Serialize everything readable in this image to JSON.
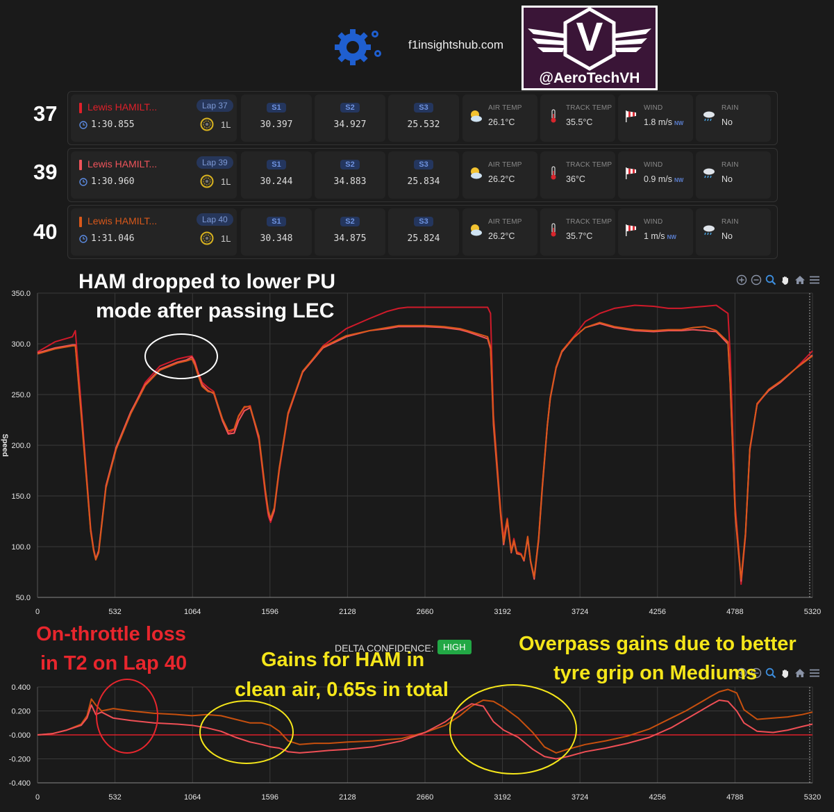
{
  "header": {
    "site": "f1insightshub.com",
    "brand_letter": "V",
    "brand_handle": "@AeroTechVH"
  },
  "laps": [
    {
      "lap_number": "37",
      "driver": "Lewis HAMILT...",
      "color": "#e0202a",
      "lap_badge": "Lap 37",
      "time": "1:30.855",
      "tyre_info": "1L",
      "sectors": [
        {
          "label": "S1",
          "time": "30.397"
        },
        {
          "label": "S2",
          "time": "34.927"
        },
        {
          "label": "S3",
          "time": "25.532"
        }
      ],
      "weather": {
        "air_label": "AIR TEMP",
        "air": "26.1°C",
        "track_label": "TRACK TEMP",
        "track": "35.5°C",
        "wind_label": "WIND",
        "wind": "1.8 m/s",
        "wind_dir": "NW",
        "rain_label": "RAIN",
        "rain": "No"
      }
    },
    {
      "lap_number": "39",
      "driver": "Lewis HAMILT...",
      "color": "#f0545b",
      "lap_badge": "Lap 39",
      "time": "1:30.960",
      "tyre_info": "1L",
      "sectors": [
        {
          "label": "S1",
          "time": "30.244"
        },
        {
          "label": "S2",
          "time": "34.883"
        },
        {
          "label": "S3",
          "time": "25.834"
        }
      ],
      "weather": {
        "air_label": "AIR TEMP",
        "air": "26.2°C",
        "track_label": "TRACK TEMP",
        "track": "36°C",
        "wind_label": "WIND",
        "wind": "0.9 m/s",
        "wind_dir": "NW",
        "rain_label": "RAIN",
        "rain": "No"
      }
    },
    {
      "lap_number": "40",
      "driver": "Lewis HAMILT...",
      "color": "#d9581a",
      "lap_badge": "Lap 40",
      "time": "1:31.046",
      "tyre_info": "1L",
      "sectors": [
        {
          "label": "S1",
          "time": "30.348"
        },
        {
          "label": "S2",
          "time": "34.875"
        },
        {
          "label": "S3",
          "time": "25.824"
        }
      ],
      "weather": {
        "air_label": "AIR TEMP",
        "air": "26.2°C",
        "track_label": "TRACK TEMP",
        "track": "35.7°C",
        "wind_label": "WIND",
        "wind": "1 m/s",
        "wind_dir": "NW",
        "rain_label": "RAIN",
        "rain": "No"
      }
    }
  ],
  "toolbar_icons": [
    "zoom-in-icon",
    "zoom-out-icon",
    "zoom-select-icon",
    "pan-icon",
    "home-icon",
    "menu-icon"
  ],
  "delta_confidence": {
    "label": "DELTA CONFIDENCE:",
    "value": "HIGH",
    "color": "#22a845"
  },
  "annotations": {
    "pu_mode_line1": "HAM dropped to lower PU",
    "pu_mode_line2": "mode after passing LEC",
    "throttle_line1": "On-throttle loss",
    "throttle_line2": "in T2 on Lap 40",
    "gains_line1": "Gains for HAM in",
    "gains_line2": "clean air, 0.65s in total",
    "overpass_line1": "Overpass gains due to better",
    "overpass_line2": "tyre grip on Mediums"
  },
  "chart_data": [
    {
      "type": "line",
      "ylabel": "Speed",
      "xlim": [
        0,
        5320
      ],
      "ylim": [
        50,
        350
      ],
      "x_ticks": [
        "0",
        "532",
        "1064",
        "1596",
        "2128",
        "2660",
        "3192",
        "3724",
        "4256",
        "4788",
        "5320"
      ],
      "y_ticks": [
        "50.0",
        "100.0",
        "150.0",
        "200.0",
        "250.0",
        "300.0",
        "350.0"
      ],
      "grid": true,
      "series": [
        {
          "color": "#d11a2a",
          "x": [
            0,
            120,
            240,
            260,
            300,
            340,
            365,
            385,
            400,
            420,
            470,
            540,
            640,
            740,
            840,
            960,
            1020,
            1060,
            1080,
            1100,
            1130,
            1170,
            1210,
            1270,
            1310,
            1350,
            1380,
            1420,
            1460,
            1520,
            1565,
            1585,
            1600,
            1625,
            1660,
            1720,
            1820,
            1960,
            2120,
            2280,
            2400,
            2480,
            2540,
            2600,
            2660,
            2790,
            2900,
            2950,
            3090,
            3110,
            3130,
            3180,
            3200,
            3225,
            3252,
            3270,
            3290,
            3320,
            3340,
            3365,
            3385,
            3410,
            3440,
            3465,
            3500,
            3520,
            3560,
            3600,
            3680,
            3760,
            3860,
            3960,
            4100,
            4230,
            4330,
            4420,
            4500,
            4580,
            4660,
            4740,
            4755,
            4790,
            4818,
            4830,
            4860,
            4890,
            4940,
            5020,
            5100,
            5200,
            5320
          ],
          "y": [
            292,
            302,
            307,
            313,
            240,
            165,
            118,
            98,
            88,
            95,
            160,
            198,
            232,
            262,
            278,
            285,
            287,
            288,
            283,
            273,
            262,
            257,
            253,
            225,
            212,
            215,
            228,
            237,
            239,
            205,
            150,
            130,
            124,
            135,
            175,
            230,
            272,
            298,
            315,
            325,
            332,
            335,
            336,
            336,
            336,
            336,
            336,
            336,
            336,
            330,
            230,
            135,
            109,
            128,
            96,
            108,
            95,
            93,
            86,
            110,
            85,
            70,
            108,
            160,
            220,
            247,
            277,
            293,
            307,
            322,
            330,
            335,
            338,
            337,
            335,
            335,
            336,
            337,
            338,
            330,
            290,
            140,
            90,
            63,
            110,
            195,
            240,
            255,
            263,
            275,
            293
          ]
        },
        {
          "color": "#f0545b",
          "x": [
            0,
            120,
            240,
            260,
            300,
            340,
            365,
            385,
            400,
            420,
            470,
            540,
            640,
            740,
            840,
            960,
            1020,
            1060,
            1080,
            1100,
            1130,
            1170,
            1210,
            1270,
            1310,
            1350,
            1380,
            1420,
            1460,
            1520,
            1565,
            1585,
            1600,
            1625,
            1660,
            1720,
            1820,
            1960,
            2120,
            2280,
            2400,
            2480,
            2540,
            2600,
            2660,
            2790,
            2900,
            2950,
            3090,
            3110,
            3130,
            3180,
            3200,
            3225,
            3252,
            3270,
            3290,
            3320,
            3340,
            3365,
            3385,
            3410,
            3440,
            3465,
            3500,
            3520,
            3560,
            3600,
            3680,
            3760,
            3860,
            3960,
            4100,
            4230,
            4330,
            4420,
            4500,
            4580,
            4660,
            4740,
            4755,
            4790,
            4818,
            4830,
            4860,
            4890,
            4940,
            5020,
            5100,
            5200,
            5320
          ],
          "y": [
            291,
            296,
            299,
            299,
            233,
            162,
            116,
            97,
            88,
            96,
            160,
            198,
            233,
            260,
            275,
            282,
            284,
            287,
            281,
            272,
            260,
            254,
            251,
            224,
            211,
            212,
            224,
            234,
            237,
            207,
            153,
            133,
            126,
            136,
            177,
            231,
            272,
            296,
            307,
            313,
            315,
            317,
            317,
            317,
            317,
            316,
            314,
            312,
            305,
            295,
            220,
            130,
            102,
            125,
            94,
            105,
            93,
            92,
            86,
            108,
            85,
            68,
            106,
            157,
            219,
            246,
            276,
            292,
            306,
            316,
            320,
            316,
            313,
            312,
            313,
            313,
            314,
            313,
            312,
            300,
            260,
            130,
            85,
            66,
            112,
            196,
            241,
            254,
            262,
            275,
            289
          ]
        },
        {
          "color": "#d9581a",
          "x": [
            0,
            120,
            240,
            260,
            300,
            340,
            365,
            385,
            400,
            420,
            470,
            540,
            640,
            740,
            840,
            960,
            1020,
            1060,
            1080,
            1100,
            1130,
            1170,
            1210,
            1270,
            1310,
            1350,
            1380,
            1420,
            1460,
            1520,
            1565,
            1585,
            1600,
            1625,
            1660,
            1720,
            1820,
            1960,
            2120,
            2280,
            2400,
            2480,
            2540,
            2600,
            2660,
            2790,
            2900,
            2950,
            3090,
            3110,
            3130,
            3180,
            3200,
            3225,
            3252,
            3270,
            3290,
            3320,
            3340,
            3365,
            3385,
            3410,
            3440,
            3465,
            3500,
            3520,
            3560,
            3600,
            3680,
            3760,
            3860,
            3960,
            4100,
            4230,
            4330,
            4420,
            4500,
            4580,
            4660,
            4740,
            4755,
            4790,
            4818,
            4830,
            4860,
            4890,
            4940,
            5020,
            5100,
            5200,
            5320
          ],
          "y": [
            290,
            295,
            298,
            298,
            230,
            160,
            115,
            96,
            87,
            94,
            158,
            196,
            231,
            259,
            274,
            281,
            283,
            285,
            279,
            270,
            258,
            253,
            252,
            226,
            214,
            216,
            229,
            238,
            238,
            209,
            155,
            135,
            128,
            138,
            178,
            232,
            273,
            297,
            308,
            313,
            316,
            318,
            318,
            318,
            318,
            317,
            315,
            313,
            307,
            297,
            225,
            132,
            104,
            127,
            95,
            106,
            94,
            92,
            87,
            110,
            86,
            70,
            108,
            159,
            220,
            247,
            277,
            293,
            306,
            316,
            321,
            317,
            314,
            313,
            314,
            314,
            316,
            317,
            313,
            302,
            262,
            132,
            87,
            68,
            113,
            197,
            241,
            255,
            263,
            275,
            288
          ]
        }
      ]
    },
    {
      "type": "line",
      "xlim": [
        0,
        5320
      ],
      "ylim": [
        -0.4,
        0.4
      ],
      "x_ticks": [
        "0",
        "532",
        "1064",
        "1596",
        "2128",
        "2660",
        "3192",
        "3724",
        "4256",
        "4788",
        "5320"
      ],
      "y_ticks": [
        "-0.400",
        "-0.200",
        "-0.000",
        "0.200",
        "0.400"
      ],
      "grid": true,
      "reference_line": {
        "y": 0,
        "color": "#e0202a"
      },
      "series": [
        {
          "color": "#c8500e",
          "x": [
            0,
            100,
            200,
            300,
            340,
            370,
            400,
            440,
            520,
            640,
            800,
            960,
            1060,
            1160,
            1260,
            1360,
            1460,
            1540,
            1600,
            1660,
            1720,
            1800,
            1900,
            2000,
            2128,
            2300,
            2500,
            2660,
            2800,
            2900,
            2980,
            3060,
            3130,
            3200,
            3300,
            3400,
            3480,
            3560,
            3640,
            3760,
            3900,
            4050,
            4200,
            4350,
            4450,
            4550,
            4620,
            4680,
            4740,
            4800,
            4850,
            4940,
            5050,
            5150,
            5250,
            5320
          ],
          "y": [
            0,
            0.01,
            0.04,
            0.09,
            0.16,
            0.3,
            0.25,
            0.2,
            0.22,
            0.2,
            0.18,
            0.17,
            0.16,
            0.17,
            0.16,
            0.13,
            0.1,
            0.1,
            0.08,
            0.03,
            -0.05,
            -0.08,
            -0.07,
            -0.07,
            -0.06,
            -0.05,
            -0.03,
            0.02,
            0.08,
            0.16,
            0.24,
            0.29,
            0.28,
            0.23,
            0.14,
            0.02,
            -0.1,
            -0.15,
            -0.12,
            -0.08,
            -0.05,
            -0.01,
            0.05,
            0.14,
            0.2,
            0.27,
            0.32,
            0.36,
            0.38,
            0.35,
            0.21,
            0.13,
            0.14,
            0.15,
            0.17,
            0.19
          ]
        },
        {
          "color": "#ef4f55",
          "x": [
            0,
            100,
            200,
            300,
            340,
            370,
            400,
            440,
            520,
            640,
            800,
            960,
            1060,
            1160,
            1260,
            1360,
            1460,
            1540,
            1600,
            1660,
            1720,
            1800,
            1900,
            2000,
            2128,
            2300,
            2500,
            2660,
            2800,
            2900,
            2980,
            3060,
            3130,
            3200,
            3300,
            3400,
            3480,
            3560,
            3640,
            3760,
            3900,
            4050,
            4200,
            4350,
            4450,
            4550,
            4620,
            4680,
            4740,
            4800,
            4850,
            4940,
            5050,
            5150,
            5250,
            5320
          ],
          "y": [
            0,
            0.01,
            0.04,
            0.08,
            0.14,
            0.25,
            0.17,
            0.19,
            0.14,
            0.12,
            0.1,
            0.09,
            0.08,
            0.06,
            0.03,
            -0.02,
            -0.06,
            -0.08,
            -0.1,
            -0.11,
            -0.14,
            -0.15,
            -0.14,
            -0.13,
            -0.12,
            -0.1,
            -0.05,
            0.02,
            0.11,
            0.2,
            0.26,
            0.24,
            0.11,
            0.04,
            -0.02,
            -0.12,
            -0.18,
            -0.2,
            -0.18,
            -0.14,
            -0.11,
            -0.07,
            -0.02,
            0.06,
            0.13,
            0.2,
            0.25,
            0.29,
            0.28,
            0.2,
            0.1,
            0.03,
            0.02,
            0.04,
            0.07,
            0.09
          ]
        }
      ]
    }
  ]
}
